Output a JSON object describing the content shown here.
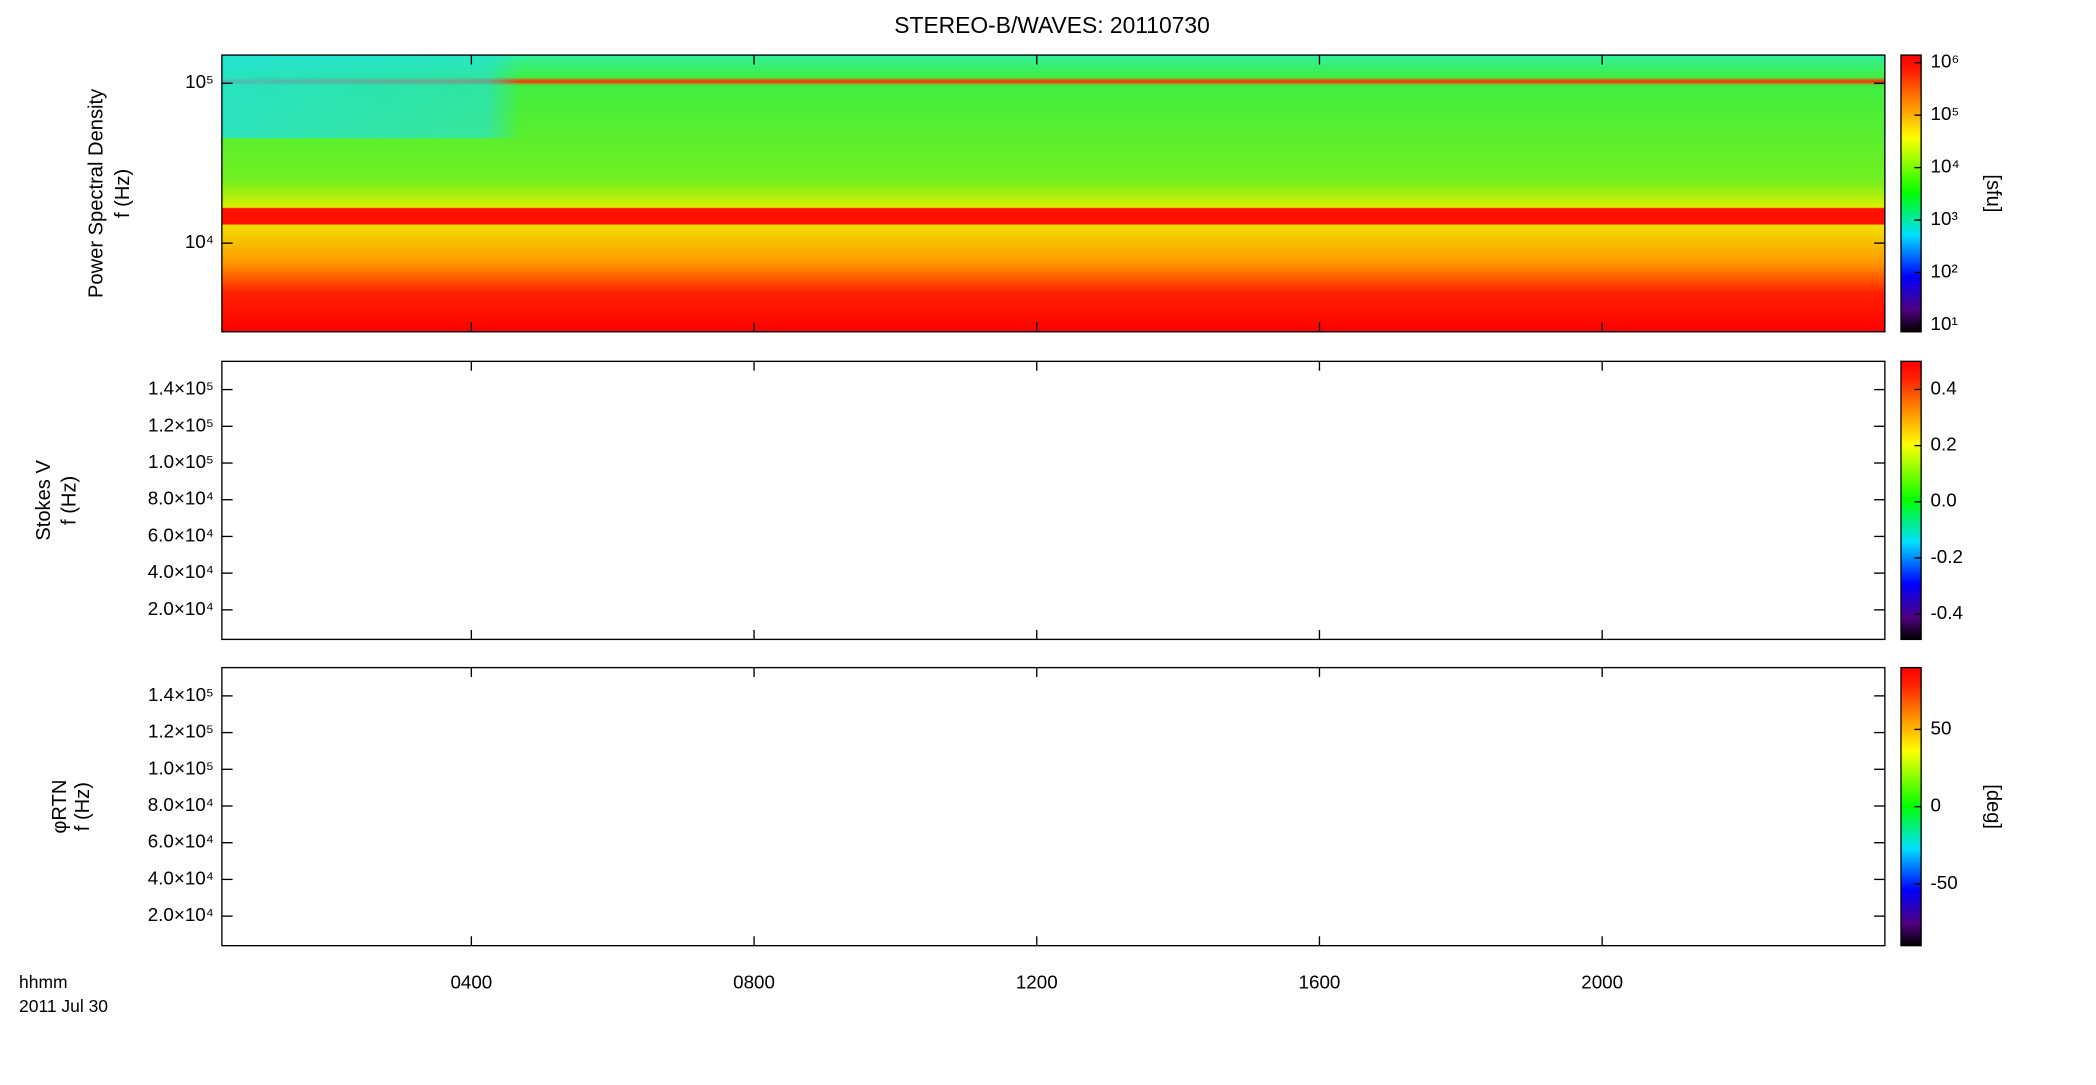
{
  "title": "STEREO-B/WAVES: 20110730",
  "x_axis": {
    "label_lines": [
      "hhmm",
      "2011 Jul 30"
    ]
  },
  "chart_data": [
    {
      "type": "heatmap",
      "ylabel": "Power Spectral Density",
      "ylabel2": "f (Hz)",
      "xlim": [
        0.47,
        24.0
      ],
      "xticks": [
        {
          "value": 4,
          "label": "0400"
        },
        {
          "value": 8,
          "label": "0800"
        },
        {
          "value": 12,
          "label": "1200"
        },
        {
          "value": 16,
          "label": "1600"
        },
        {
          "value": 20,
          "label": "2000"
        }
      ],
      "yscale": "log",
      "ylim": [
        2790,
        150000
      ],
      "yticks": [
        {
          "value": 10000,
          "label": "10⁴"
        },
        {
          "value": 100000,
          "label": "10⁵"
        }
      ],
      "colorbar": {
        "scale": "log",
        "clim": [
          7.4,
          1400000
        ],
        "label": "[sfu]",
        "ticks": [
          {
            "value": 10,
            "label": "10¹"
          },
          {
            "value": 100,
            "label": "10²"
          },
          {
            "value": 1000,
            "label": "10³"
          },
          {
            "value": 10000,
            "label": "10⁴"
          },
          {
            "value": 100000,
            "label": "10⁵"
          },
          {
            "value": 1000000,
            "label": "10⁶"
          }
        ]
      }
    },
    {
      "type": "heatmap",
      "ylabel": "Stokes V",
      "ylabel2": "f (Hz)",
      "xlim": [
        0.47,
        24.0
      ],
      "xticks": [
        {
          "value": 4,
          "label": "0400"
        },
        {
          "value": 8,
          "label": "0800"
        },
        {
          "value": 12,
          "label": "1200"
        },
        {
          "value": 16,
          "label": "1600"
        },
        {
          "value": 20,
          "label": "2000"
        }
      ],
      "yscale": "linear",
      "ylim": [
        3900,
        155400
      ],
      "yticks": [
        {
          "value": 20000,
          "label": "2.0×10⁴"
        },
        {
          "value": 40000,
          "label": "4.0×10⁴"
        },
        {
          "value": 60000,
          "label": "6.0×10⁴"
        },
        {
          "value": 80000,
          "label": "8.0×10⁴"
        },
        {
          "value": 100000,
          "label": "1.0×10⁵"
        },
        {
          "value": 120000,
          "label": "1.2×10⁵"
        },
        {
          "value": 140000,
          "label": "1.4×10⁵"
        }
      ],
      "colorbar": {
        "scale": "linear",
        "clim": [
          -0.49,
          0.5
        ],
        "ticks": [
          {
            "value": -0.4,
            "label": "-0.4"
          },
          {
            "value": -0.2,
            "label": "-0.2"
          },
          {
            "value": 0,
            "label": "0.0"
          },
          {
            "value": 0.2,
            "label": "0.2"
          },
          {
            "value": 0.4,
            "label": "0.4"
          }
        ]
      }
    },
    {
      "type": "heatmap",
      "ylabel": "φRTN",
      "ylabel2": "f (Hz)",
      "xlim": [
        0.47,
        24.0
      ],
      "xticks": [
        {
          "value": 4,
          "label": "0400"
        },
        {
          "value": 8,
          "label": "0800"
        },
        {
          "value": 12,
          "label": "1200"
        },
        {
          "value": 16,
          "label": "1600"
        },
        {
          "value": 20,
          "label": "2000"
        }
      ],
      "yscale": "linear",
      "ylim": [
        3900,
        155400
      ],
      "yticks": [
        {
          "value": 20000,
          "label": "2.0×10⁴"
        },
        {
          "value": 40000,
          "label": "4.0×10⁴"
        },
        {
          "value": 60000,
          "label": "6.0×10⁴"
        },
        {
          "value": 80000,
          "label": "8.0×10⁴"
        },
        {
          "value": 100000,
          "label": "1.0×10⁵"
        },
        {
          "value": 120000,
          "label": "1.2×10⁵"
        },
        {
          "value": 140000,
          "label": "1.4×10⁵"
        }
      ],
      "colorbar": {
        "scale": "linear",
        "clim": [
          -90,
          90
        ],
        "label": "[deg]",
        "ticks": [
          -50,
          0,
          50
        ]
      }
    }
  ]
}
